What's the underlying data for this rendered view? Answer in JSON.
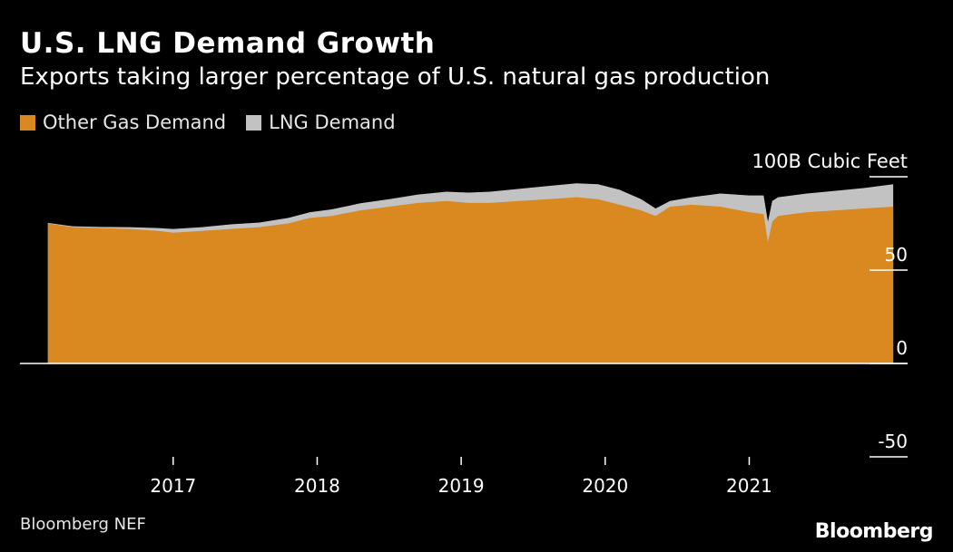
{
  "header": {
    "title": "U.S. LNG Demand Growth",
    "subtitle": "Exports taking larger percentage of U.S. natural gas production"
  },
  "footer": {
    "source": "Bloomberg NEF",
    "brand": "Bloomberg"
  },
  "colors": {
    "other_gas": "#d9891f",
    "lng": "#c2c2c2",
    "background": "#000000",
    "axis": "#ffffff"
  },
  "chart_data": {
    "type": "area",
    "stacked": true,
    "title": "U.S. LNG Demand Growth",
    "subtitle": "Exports taking larger percentage of U.S. natural gas production",
    "ylabel": "",
    "y_unit_label": "100B Cubic Feet",
    "ylim": [
      -50,
      100
    ],
    "yticks": [
      -50,
      0,
      50,
      100
    ],
    "ytick_labels": [
      "-50",
      "0",
      "50",
      "100B Cubic Feet"
    ],
    "xlim": [
      2016.1,
      2022.1
    ],
    "xticks": [
      2017,
      2018,
      2019,
      2020,
      2021
    ],
    "xtick_labels": [
      "2017",
      "2018",
      "2019",
      "2020",
      "2021"
    ],
    "grid": false,
    "legend_position": "top-left",
    "x": [
      2016.13,
      2016.3,
      2016.5,
      2016.7,
      2016.9,
      2017.0,
      2017.2,
      2017.4,
      2017.6,
      2017.8,
      2017.95,
      2018.1,
      2018.3,
      2018.5,
      2018.7,
      2018.9,
      2019.05,
      2019.2,
      2019.4,
      2019.6,
      2019.8,
      2019.95,
      2020.1,
      2020.25,
      2020.35,
      2020.45,
      2020.6,
      2020.8,
      2021.0,
      2021.1,
      2021.13,
      2021.16,
      2021.2,
      2021.4,
      2021.6,
      2021.8,
      2022.0
    ],
    "series": [
      {
        "name": "Other Gas Demand",
        "values": [
          75,
          73,
          72.5,
          72,
          71,
          70,
          71,
          72,
          73,
          75,
          78,
          79,
          82,
          84,
          86,
          87,
          86,
          86,
          87,
          88,
          89,
          88,
          85,
          82,
          79,
          84,
          85,
          84,
          81,
          80,
          65,
          76,
          79,
          81,
          82,
          83,
          84
        ]
      },
      {
        "name": "LNG Demand",
        "values": [
          0.3,
          0.5,
          0.6,
          1,
          1.5,
          2,
          2,
          2.5,
          2.5,
          3,
          3,
          3.5,
          3.8,
          4,
          4.5,
          5,
          5.5,
          6,
          6.5,
          7,
          7.5,
          8,
          8,
          6,
          4,
          3,
          4,
          7,
          9,
          10,
          11,
          11,
          10,
          10,
          10.5,
          11,
          12
        ]
      }
    ]
  }
}
